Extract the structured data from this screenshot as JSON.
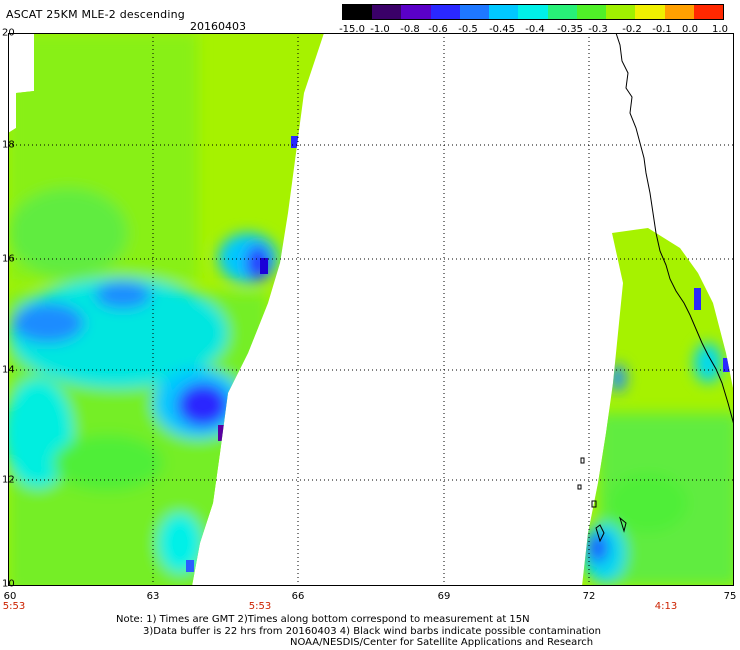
{
  "header": {
    "title": "ASCAT 25KM MLE-2 descending",
    "date": "20160403"
  },
  "colorbar": {
    "labels": [
      "-15.0",
      "-1.0",
      "-0.8",
      "-0.6",
      "-0.5",
      "-0.45",
      "-0.4",
      "-0.35",
      "-0.3",
      "-0.2",
      "-0.1",
      "0.0",
      "1.0"
    ],
    "colors": [
      "#000000",
      "#3a0068",
      "#5a00c8",
      "#2a28ff",
      "#1e78ff",
      "#00c8ff",
      "#00f0e8",
      "#28f078",
      "#50f028",
      "#a0f000",
      "#f0f000",
      "#ffa000",
      "#ff2800"
    ]
  },
  "axes": {
    "y_labels": [
      "20",
      "18",
      "16",
      "14",
      "12",
      "10"
    ],
    "x_labels": [
      "60",
      "63",
      "66",
      "69",
      "72",
      "75"
    ]
  },
  "time_labels": [
    "5:53",
    "5:53",
    "4:13"
  ],
  "notes": [
    "Note: 1) Times are GMT 2)Times along bottom correspond to measurement at 15N",
    "3)Data buffer is 22 hrs from 20160403 4) Black wind barbs indicate possible contamination",
    "NOAA/NESDIS/Center for Satellite Applications and Research"
  ]
}
